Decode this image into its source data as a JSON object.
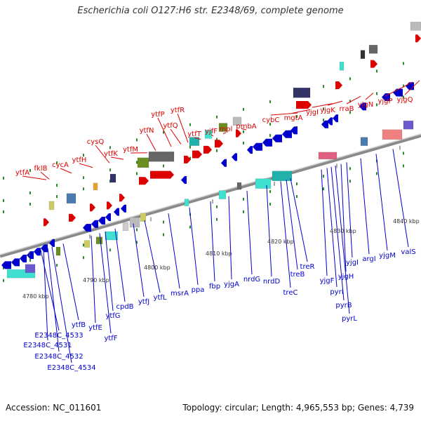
{
  "header": {
    "title": "Escherichia coli O127:H6 str. E2348/69, complete genome"
  },
  "footer": {
    "accession": "Accession: NC_011601",
    "summary": "Topology: circular; Length: 4,965,553 bp; Genes: 4,739"
  },
  "colors": {
    "forward": "#dd0000",
    "reverse": "#0000cc"
  },
  "ticks": [
    "4780 kbp",
    "4790 kbp",
    "4800 kbp",
    "4810 kbp",
    "4820 kbp",
    "4830 kbp",
    "4840 kbp"
  ],
  "forward_genes": [
    "ytfA",
    "fklB",
    "cycA",
    "ytfH",
    "cysQ",
    "ytfK",
    "ytfM",
    "ytfN",
    "ytfP",
    "ytfQ",
    "ytfR",
    "ytfT",
    "yjfF",
    "mpl",
    "pmbA",
    "cybC",
    "mgtA",
    "yjgI",
    "yjgK",
    "rraB",
    "yjgN",
    "yjgP",
    "yjgQ"
  ],
  "reverse_genes": [
    "ytfB",
    "E2348C_4533",
    "E2348C_4531",
    "E2348C_4532",
    "E2348C_4534",
    "ytfE",
    "ytfF",
    "ytfG",
    "cpdB",
    "ytfJ",
    "ytfL",
    "msrA",
    "ppa",
    "fbp",
    "yjgA",
    "nrdG",
    "nrdD",
    "treC",
    "treB",
    "treR",
    "yjgF",
    "pyrI",
    "pyrB",
    "pyrL",
    "yjgH",
    "yjgI",
    "argI",
    "yjgM",
    "valS"
  ]
}
